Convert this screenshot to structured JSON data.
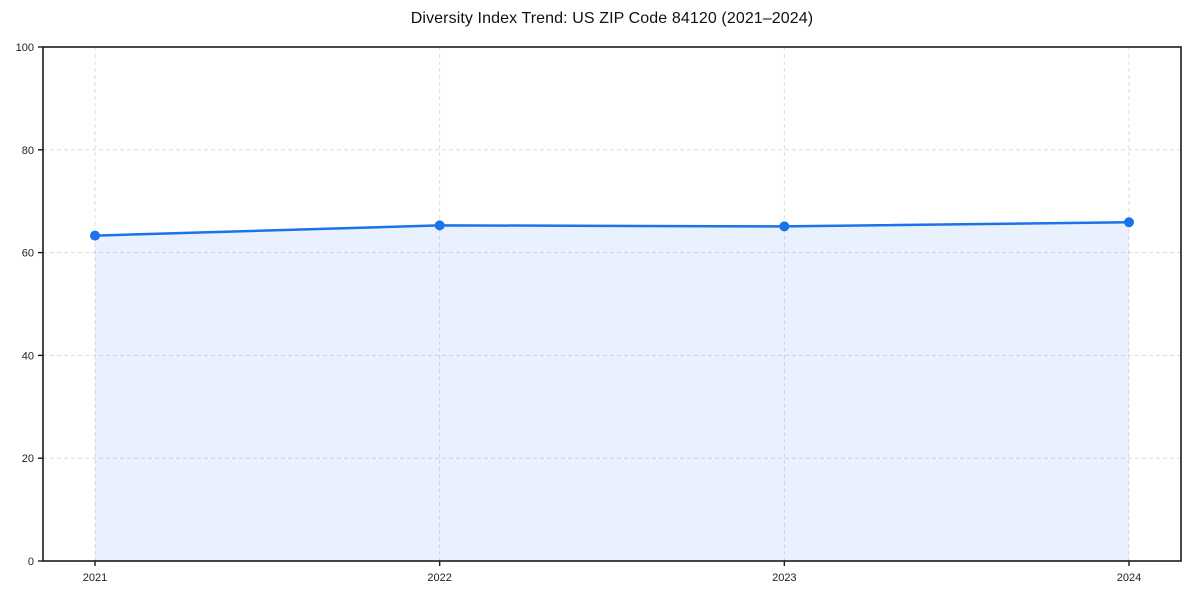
{
  "figure": {
    "background": "#ffffff"
  },
  "chart_data": {
    "type": "line",
    "subtype": "line-with-area-fill-and-markers",
    "title": "Diversity Index Trend: US ZIP Code 84120 (2021–2024)",
    "x": [
      "2021",
      "2022",
      "2023",
      "2024"
    ],
    "series": [
      {
        "name": "Diversity Index",
        "values": [
          63.3,
          65.3,
          65.1,
          65.9
        ]
      }
    ],
    "xlabel": "",
    "ylabel": "",
    "ylim": [
      0,
      100
    ],
    "yticks": [
      0,
      20,
      40,
      60,
      80,
      100
    ],
    "grid": "dashed-both-axes",
    "legend_position": "none",
    "marker": "circle",
    "colors": {
      "line": "#1a73e8",
      "marker": "#1a73e8",
      "area_fill": "rgba(26,115,232,0.10)",
      "grid": "#dcdcdc",
      "spine": "#1a1a1a",
      "tick_label": "#222222",
      "title": "#111111"
    }
  }
}
